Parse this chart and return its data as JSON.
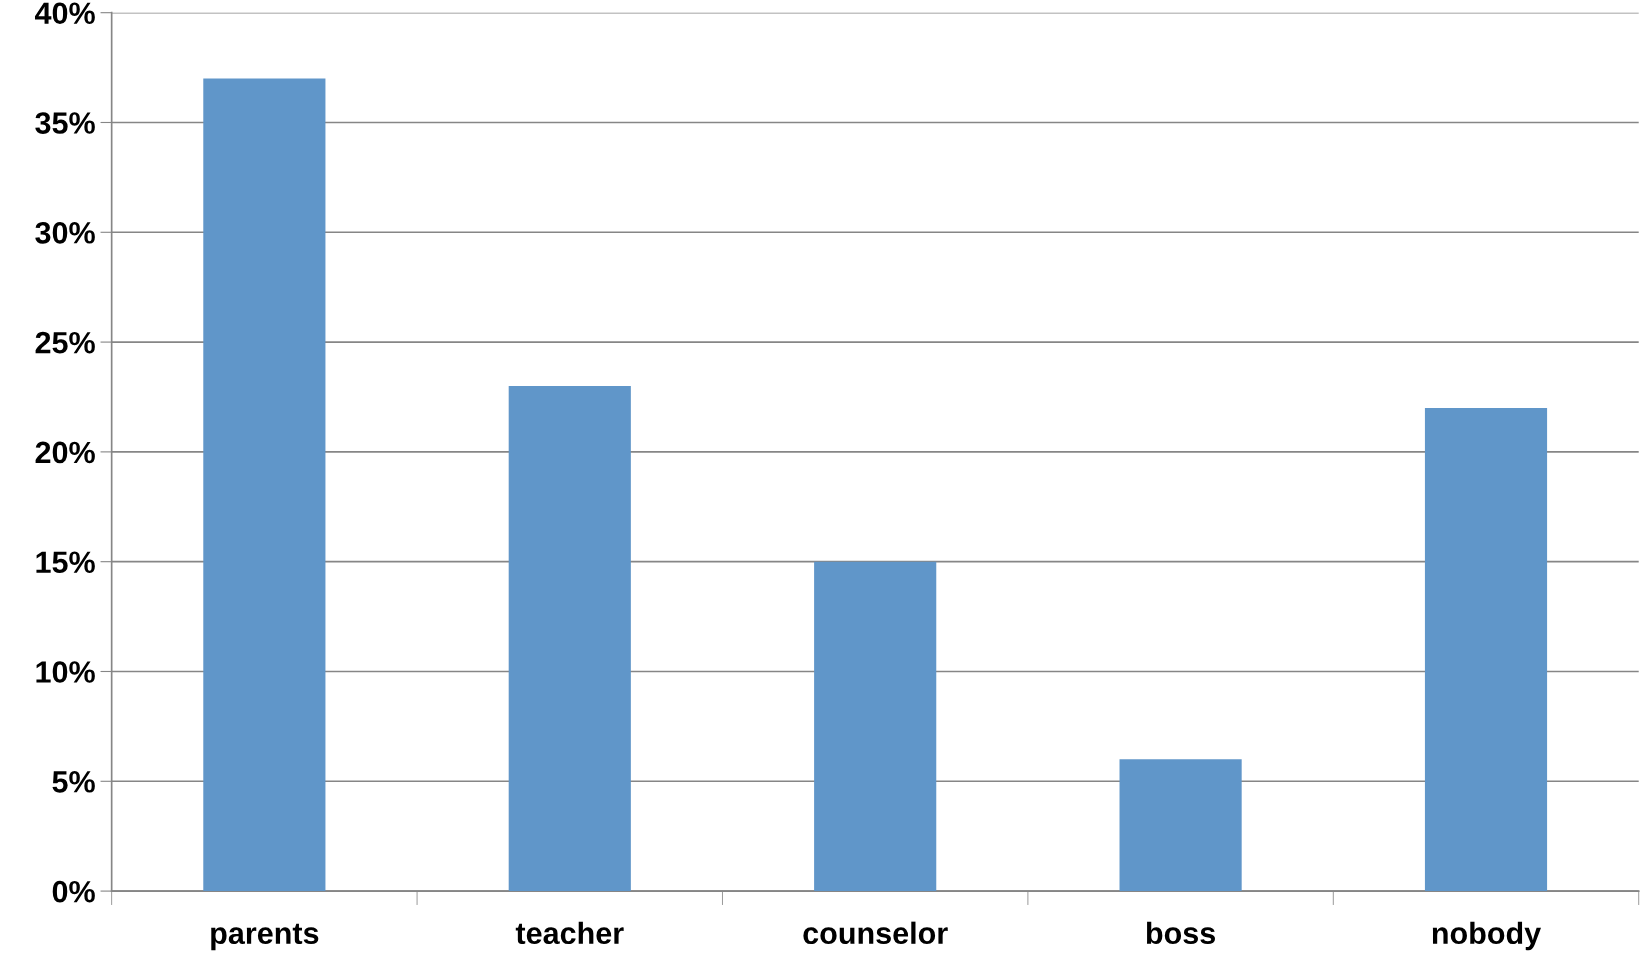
{
  "chart_data": {
    "type": "bar",
    "categories": [
      "parents",
      "teacher",
      "counselor",
      "boss",
      "nobody"
    ],
    "values": [
      37,
      23,
      15,
      6,
      22
    ],
    "color": "#6096c9",
    "ylim": [
      0,
      40
    ],
    "yticks": [
      {
        "value": 0,
        "label": "0%"
      },
      {
        "value": 5,
        "label": "5%"
      },
      {
        "value": 10,
        "label": "10%"
      },
      {
        "value": 15,
        "label": "15%"
      },
      {
        "value": 20,
        "label": "20%"
      },
      {
        "value": 25,
        "label": "25%"
      },
      {
        "value": 30,
        "label": "30%"
      },
      {
        "value": 35,
        "label": "35%"
      },
      {
        "value": 40,
        "label": "40%"
      }
    ],
    "grid": "y",
    "legend": false
  }
}
